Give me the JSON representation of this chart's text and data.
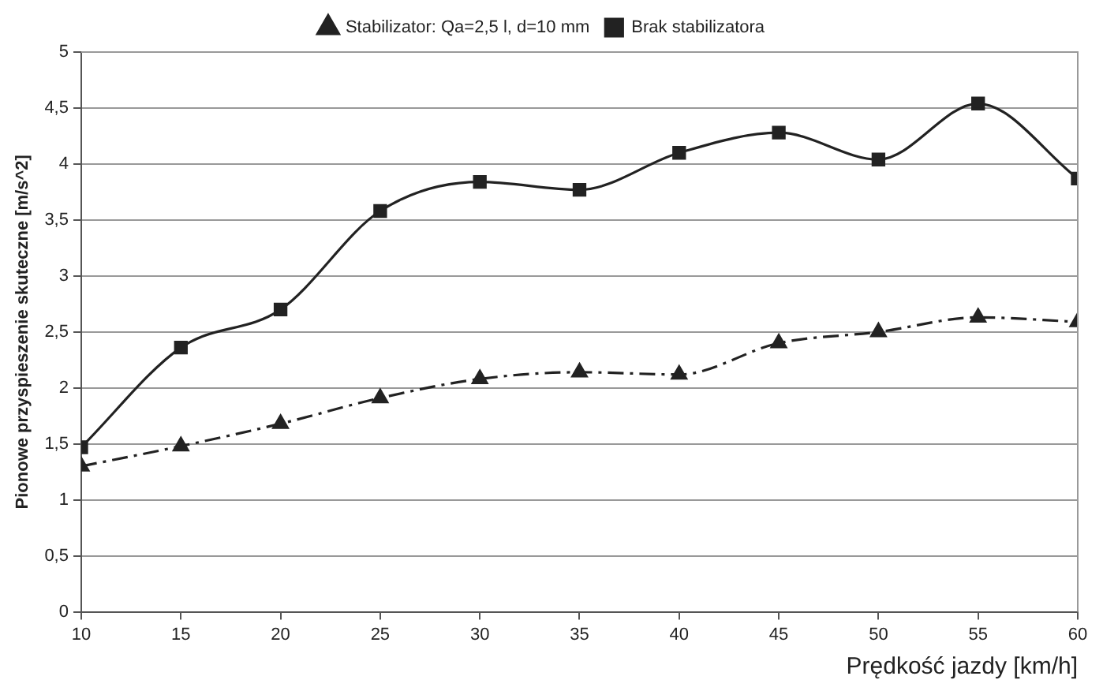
{
  "chart_data": {
    "type": "line",
    "xlabel": "Prędkość jazdy [km/h]",
    "ylabel": "Pionowe przyspieszenie skuteczne [m/s^2]",
    "x": [
      10,
      15,
      20,
      25,
      30,
      35,
      40,
      45,
      50,
      55,
      60
    ],
    "series": [
      {
        "name": "Stabilizator: Qa=2,5 l, d=10 mm",
        "color": "#222222",
        "marker": "triangle",
        "line_style": "dashed",
        "values": [
          1.3,
          1.48,
          1.68,
          1.91,
          2.08,
          2.14,
          2.12,
          2.4,
          2.5,
          2.63,
          2.59
        ]
      },
      {
        "name": "Brak stabilizatora",
        "color": "#222222",
        "marker": "square",
        "line_style": "solid",
        "values": [
          1.47,
          2.36,
          2.7,
          3.58,
          3.84,
          3.77,
          4.1,
          4.28,
          4.04,
          4.54,
          3.87
        ]
      }
    ],
    "xlim": [
      10,
      60
    ],
    "xticks": [
      10,
      15,
      20,
      25,
      30,
      35,
      40,
      45,
      50,
      55,
      60
    ],
    "ylim": [
      0,
      5
    ],
    "yticks": [
      {
        "value": 0,
        "label": "0"
      },
      {
        "value": 0.5,
        "label": "0,5"
      },
      {
        "value": 1,
        "label": "1"
      },
      {
        "value": 1.5,
        "label": "1,5"
      },
      {
        "value": 2,
        "label": "2"
      },
      {
        "value": 2.5,
        "label": "2,5"
      },
      {
        "value": 3,
        "label": "3"
      },
      {
        "value": 3.5,
        "label": "3,5"
      },
      {
        "value": 4,
        "label": "4"
      },
      {
        "value": 4.5,
        "label": "4,5"
      },
      {
        "value": 5,
        "label": "5"
      }
    ],
    "grid": "y",
    "legend": "top"
  }
}
